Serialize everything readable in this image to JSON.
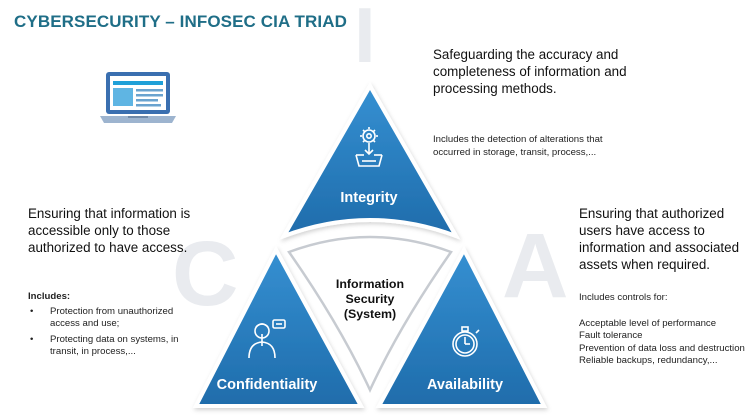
{
  "title": "CYBERSECURITY – INFOSEC CIA TRIAD",
  "background_letters": {
    "i": "I",
    "c": "C",
    "a": "A"
  },
  "colors": {
    "title": "#1f6e87",
    "segment": "#2e86c8",
    "segment_dark": "#1e6aa8",
    "background_letter": "#e9ebef"
  },
  "decor": {
    "laptop": "laptop-icon"
  },
  "center": {
    "lines": [
      "Information",
      "Security",
      "(System)"
    ]
  },
  "integrity": {
    "label": "Integrity",
    "icon": "gear-tray-icon",
    "lead": "Safeguarding the accuracy and completeness of information and processing methods.",
    "detail": "Includes the detection of alterations that occurred in storage, transit, process,..."
  },
  "confidentiality": {
    "label": "Confidentiality",
    "icon": "person-shh-icon",
    "lead": "Ensuring that information is accessible only to those authorized to have access.",
    "includes_label": "Includes:",
    "items": [
      "Protection from unauthorized access and use;",
      "Protecting data on systems, in transit, in process,..."
    ]
  },
  "availability": {
    "label": "Availability",
    "icon": "stopwatch-icon",
    "lead": "Ensuring that authorized users have access to information and associated assets when required.",
    "intro": "Includes controls for:",
    "items": [
      "Acceptable level of performance",
      "Fault tolerance",
      "Prevention of data loss and destruction",
      "Reliable backups, redundancy,..."
    ]
  }
}
